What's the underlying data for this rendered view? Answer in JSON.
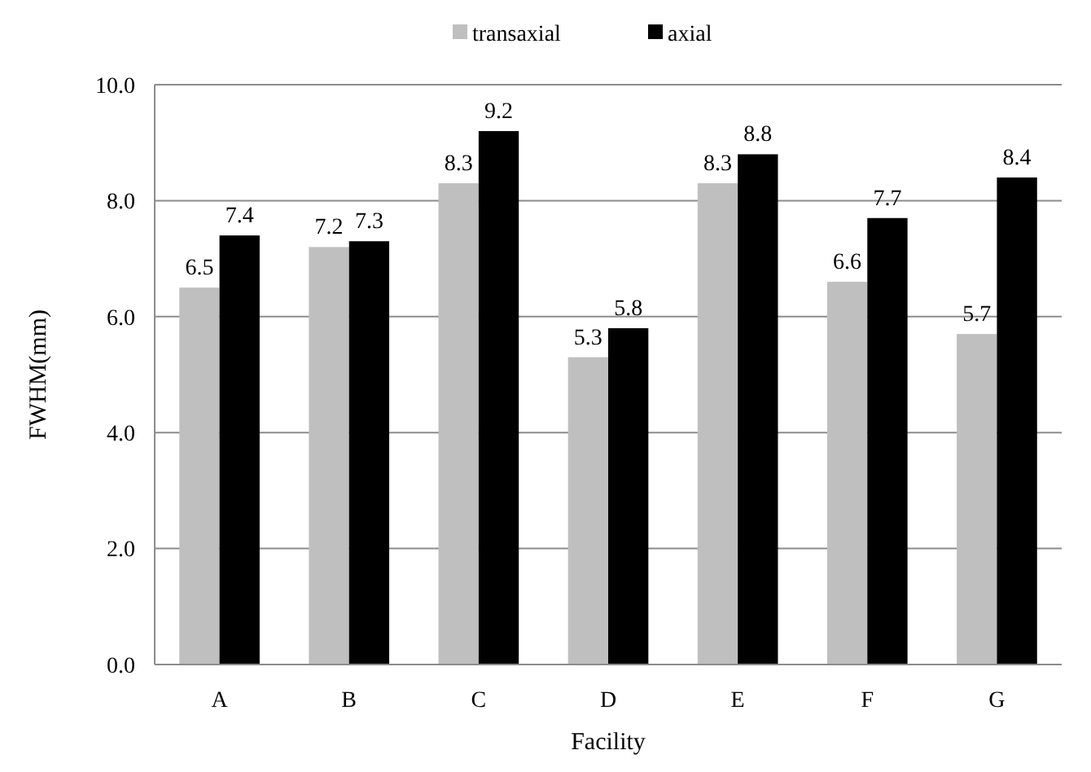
{
  "chart_data": {
    "type": "bar",
    "xlabel": "Facility",
    "ylabel": "FWHM(mm)",
    "categories": [
      "A",
      "B",
      "C",
      "D",
      "E",
      "F",
      "G"
    ],
    "series": [
      {
        "name": "transaxial",
        "color": "#bfbfbf",
        "values": [
          6.5,
          7.2,
          8.3,
          5.3,
          8.3,
          6.6,
          5.7
        ]
      },
      {
        "name": "axial",
        "color": "#000000",
        "values": [
          7.4,
          7.3,
          9.2,
          5.8,
          8.8,
          7.7,
          8.4
        ]
      }
    ],
    "ylim": [
      0,
      10
    ],
    "yticks": [
      {
        "value": 0,
        "label": "0.0"
      },
      {
        "value": 2,
        "label": "2.0"
      },
      {
        "value": 4,
        "label": "4.0"
      },
      {
        "value": 6,
        "label": "6.0"
      },
      {
        "value": 8,
        "label": "8.0"
      },
      {
        "value": 10,
        "label": "10.0"
      }
    ],
    "grid": "y",
    "legend": "top",
    "data_labels": true
  }
}
